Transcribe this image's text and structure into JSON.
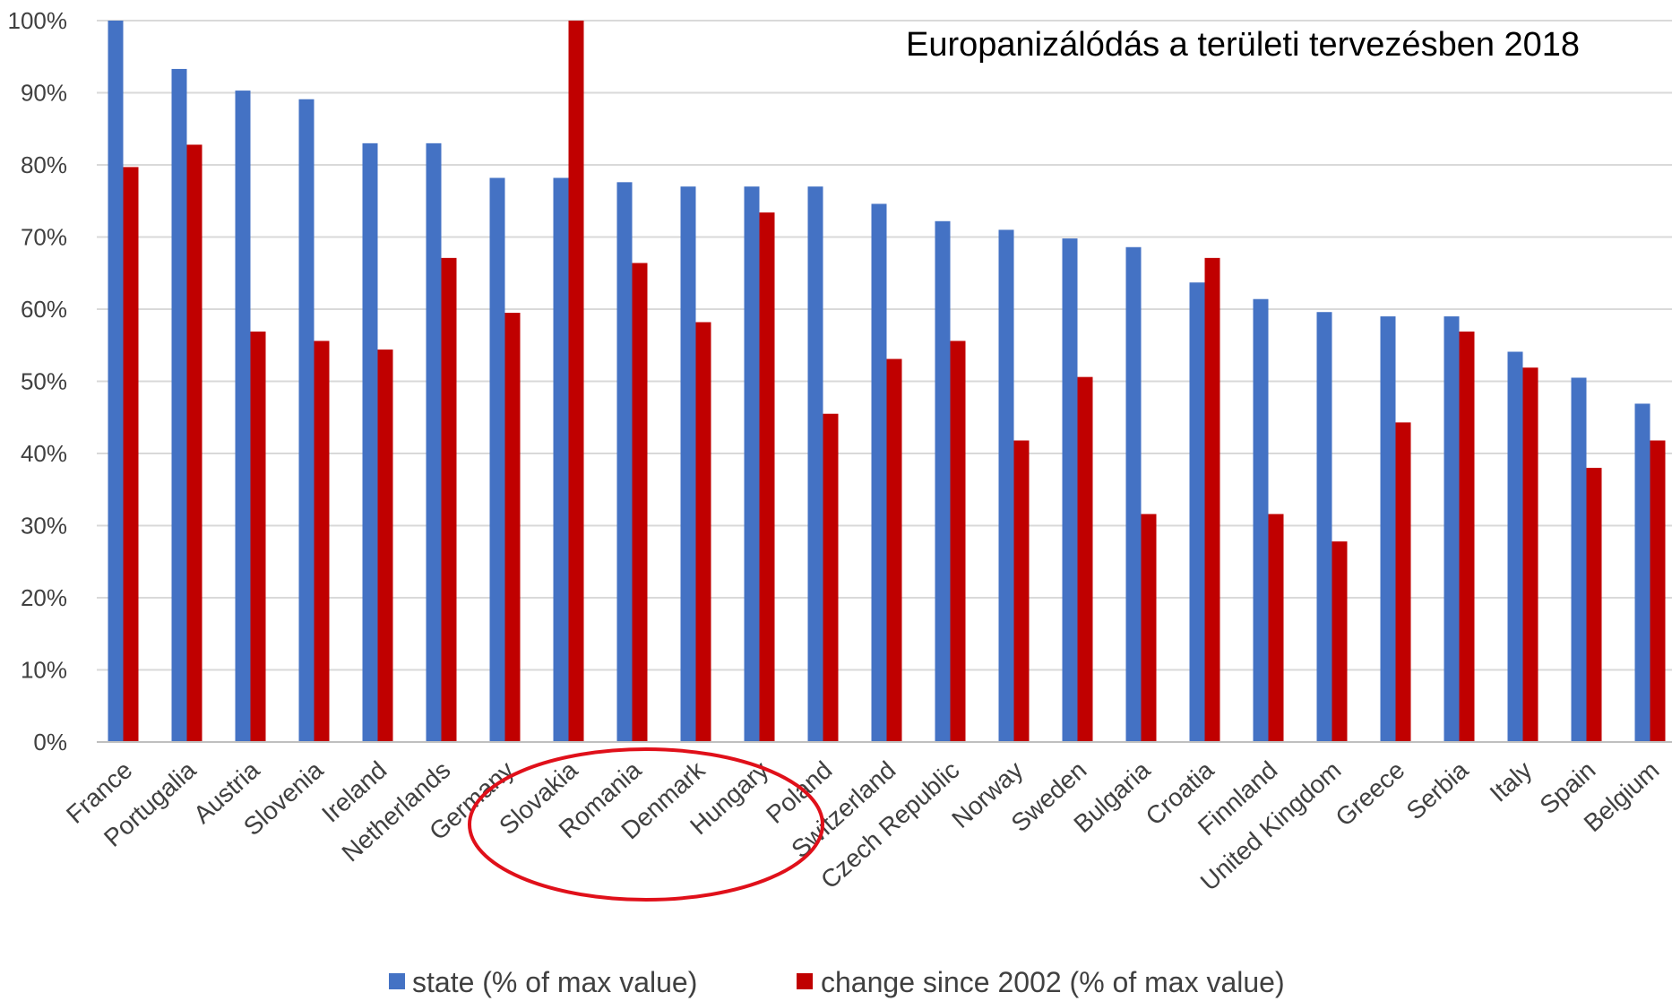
{
  "chart_data": {
    "type": "bar",
    "title": "Europanizálódás a területi tervezésben 2018",
    "xlabel": "",
    "ylabel": "",
    "ylim": [
      0,
      100
    ],
    "yticks": [
      "0%",
      "10%",
      "20%",
      "30%",
      "40%",
      "50%",
      "60%",
      "70%",
      "80%",
      "90%",
      "100%"
    ],
    "grid": true,
    "legend_position": "bottom",
    "categories": [
      "France",
      "Portugalia",
      "Austria",
      "Slovenia",
      "Ireland",
      "Netherlands",
      "Germany",
      "Slovakia",
      "Romania",
      "Denmark",
      "Hungary",
      "Poland",
      "Switzerland",
      "Czech Republic",
      "Norway",
      "Sweden",
      "Bulgaria",
      "Croatia",
      "Finnland",
      "United Kingdom",
      "Greece",
      "Serbia",
      "Italy",
      "Spain",
      "Belgium"
    ],
    "series": [
      {
        "name": "state (% of max value)",
        "color": "#4472c4",
        "values": [
          100,
          93.3,
          90.3,
          89.1,
          83,
          83,
          78.2,
          78.2,
          77.6,
          77,
          77,
          77,
          74.6,
          72.2,
          71,
          69.8,
          68.6,
          63.7,
          61.4,
          59.6,
          59,
          59,
          54.1,
          50.5,
          46.9
        ]
      },
      {
        "name": "change since 2002 (% of max value)",
        "color": "#c00000",
        "values": [
          79.7,
          82.8,
          56.9,
          55.6,
          54.4,
          67.1,
          59.5,
          100,
          66.4,
          58.2,
          73.4,
          45.5,
          53.1,
          55.6,
          41.8,
          50.6,
          31.6,
          67.1,
          31.6,
          27.8,
          44.3,
          56.9,
          51.9,
          38,
          41.8
        ]
      }
    ],
    "annotation": "red ellipse highlighting Slovakia, Romania, Denmark, Hungary"
  },
  "annotation_color": "#e0101a"
}
